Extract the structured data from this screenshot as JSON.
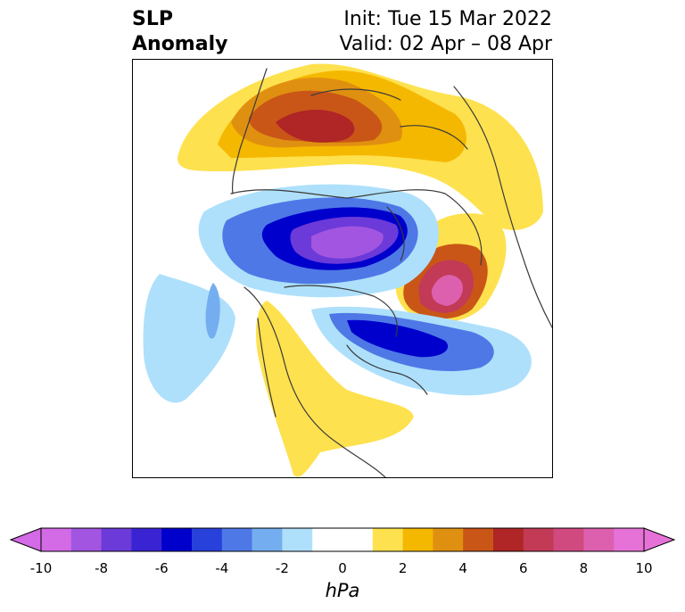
{
  "title": {
    "left_line1": "SLP",
    "left_line2": "Anomaly",
    "init": "Init: Tue 15 Mar 2022",
    "valid": "Valid: 02 Apr – 08 Apr"
  },
  "colorbar": {
    "unit": "hPa",
    "ticks": [
      "-10",
      "-8",
      "-6",
      "-4",
      "-2",
      "0",
      "2",
      "4",
      "6",
      "8",
      "10"
    ],
    "bins": [
      {
        "range": [
          -10,
          -9
        ],
        "color": "#d36ae6"
      },
      {
        "range": [
          -9,
          -8
        ],
        "color": "#a255e0"
      },
      {
        "range": [
          -8,
          -7
        ],
        "color": "#6b3ad9"
      },
      {
        "range": [
          -7,
          -6
        ],
        "color": "#3a23d2"
      },
      {
        "range": [
          -6,
          -5
        ],
        "color": "#0000cd"
      },
      {
        "range": [
          -5,
          -4
        ],
        "color": "#2741da"
      },
      {
        "range": [
          -4,
          -3
        ],
        "color": "#4e78e6"
      },
      {
        "range": [
          -3,
          -2
        ],
        "color": "#75aef0"
      },
      {
        "range": [
          -2,
          -1
        ],
        "color": "#aee0fb"
      },
      {
        "range": [
          -1,
          0
        ],
        "color": "#ffffff"
      },
      {
        "range": [
          0,
          1
        ],
        "color": "#ffffff"
      },
      {
        "range": [
          1,
          2
        ],
        "color": "#fee14e"
      },
      {
        "range": [
          2,
          3
        ],
        "color": "#f5b800"
      },
      {
        "range": [
          3,
          4
        ],
        "color": "#e09010"
      },
      {
        "range": [
          4,
          5
        ],
        "color": "#c95617"
      },
      {
        "range": [
          5,
          6
        ],
        "color": "#b02525"
      },
      {
        "range": [
          6,
          7
        ],
        "color": "#c23a55"
      },
      {
        "range": [
          7,
          8
        ],
        "color": "#d04a80"
      },
      {
        "range": [
          8,
          9
        ],
        "color": "#dc60ae"
      },
      {
        "range": [
          9,
          10
        ],
        "color": "#e672d8"
      }
    ],
    "extend": "both"
  }
}
